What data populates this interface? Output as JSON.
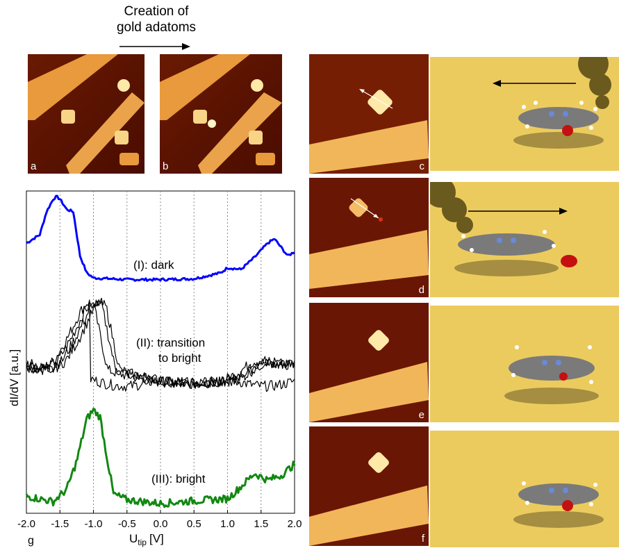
{
  "header": {
    "line1": "Creation of",
    "line2": "gold adatoms"
  },
  "panels": {
    "a": "a",
    "b": "b",
    "c": "c",
    "d": "d",
    "e": "e",
    "f": "f",
    "g": "g"
  },
  "colors": {
    "stm_dark": "#5a1200",
    "stm_mid": "#c45a0a",
    "stm_bright": "#ffe9a8",
    "surface": "#eccb5e",
    "curve_dark": "#0000ff",
    "curve_transition": "#000000",
    "curve_bright": "#118811"
  },
  "chart_data": {
    "type": "line",
    "xlabel": "U",
    "xlabel_sub": "tip",
    "xlabel_unit": "[V]",
    "ylabel": "dI/dV [a.u.]",
    "xlim": [
      -2.0,
      2.0
    ],
    "xticks": [
      "-2.0",
      "-1.5",
      "-1.0",
      "-0.5",
      "0.0",
      "0.5",
      "1.0",
      "1.5",
      "2.0"
    ],
    "grid": "vertical dotted",
    "annotations": [
      "(I): dark",
      "(II): transition",
      "to bright",
      "(III): bright"
    ],
    "series": [
      {
        "label": "(I): dark",
        "x": [
          -2.0,
          -1.8,
          -1.7,
          -1.6,
          -1.55,
          -1.5,
          -1.4,
          -1.3,
          -1.2,
          -1.1,
          -1.0,
          -0.5,
          0.0,
          0.5,
          0.9,
          1.0,
          1.2,
          1.4,
          1.6,
          1.7,
          1.8,
          1.9,
          2.0
        ],
        "y": [
          0.45,
          0.55,
          0.82,
          0.97,
          1.0,
          0.97,
          0.85,
          0.82,
          0.3,
          0.1,
          0.04,
          0.02,
          0.02,
          0.03,
          0.1,
          0.16,
          0.14,
          0.28,
          0.45,
          0.5,
          0.4,
          0.3,
          0.35
        ]
      },
      {
        "label": "(II): transition to bright",
        "x": [
          -2.0,
          -1.7,
          -1.5,
          -1.3,
          -1.2,
          -1.1,
          -1.0,
          -0.9,
          -0.8,
          -0.7,
          -0.5,
          0.0,
          0.5,
          1.0,
          1.2,
          1.5,
          1.8,
          2.0
        ],
        "y": [
          0.3,
          0.25,
          0.35,
          0.6,
          0.75,
          0.9,
          1.0,
          0.95,
          0.6,
          0.25,
          0.2,
          0.12,
          0.1,
          0.12,
          0.2,
          0.35,
          0.3,
          0.32
        ]
      },
      {
        "label": "(III): bright",
        "x": [
          -2.0,
          -1.8,
          -1.6,
          -1.4,
          -1.25,
          -1.1,
          -1.0,
          -0.9,
          -0.8,
          -0.7,
          -0.5,
          0.0,
          0.5,
          1.0,
          1.2,
          1.4,
          1.6,
          1.8,
          2.0
        ],
        "y": [
          0.08,
          0.05,
          0.02,
          0.15,
          0.45,
          0.9,
          1.0,
          0.92,
          0.5,
          0.1,
          0.04,
          0.0,
          0.03,
          0.05,
          0.18,
          0.32,
          0.25,
          0.3,
          0.42
        ]
      }
    ]
  }
}
